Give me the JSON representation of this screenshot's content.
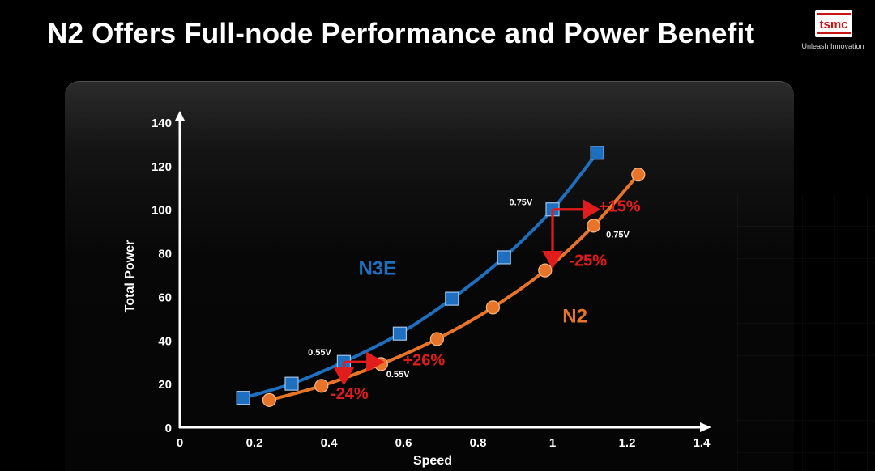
{
  "slide": {
    "title": "N2 Offers Full-node Performance and Power Benefit"
  },
  "logo": {
    "wordmark": "tsmc",
    "tagline": "Unleash Innovation"
  },
  "colors": {
    "n3e": "#1f6fc0",
    "n2": "#e8742a",
    "arrow": "#e01c1c",
    "axis": "#ffffff"
  },
  "chart_data": {
    "type": "line",
    "title": "",
    "xlabel": "Speed",
    "ylabel": "Total Power",
    "xlim": [
      0,
      1.4
    ],
    "ylim": [
      0,
      140
    ],
    "x_ticks": [
      "0",
      "0.2",
      "0.4",
      "0.6",
      "0.8",
      "1",
      "1.2",
      "1.4"
    ],
    "y_ticks": [
      "0",
      "20",
      "40",
      "60",
      "80",
      "100",
      "120",
      "140"
    ],
    "grid": false,
    "legend": "none",
    "series": [
      {
        "name": "N3E",
        "marker": "square",
        "points": [
          {
            "x": 0.17,
            "y": 13.5
          },
          {
            "x": 0.3,
            "y": 20
          },
          {
            "x": 0.44,
            "y": 30
          },
          {
            "x": 0.59,
            "y": 43
          },
          {
            "x": 0.73,
            "y": 59
          },
          {
            "x": 0.87,
            "y": 78
          },
          {
            "x": 1.0,
            "y": 100
          },
          {
            "x": 1.12,
            "y": 126
          }
        ]
      },
      {
        "name": "N2",
        "marker": "circle",
        "points": [
          {
            "x": 0.24,
            "y": 12.5
          },
          {
            "x": 0.38,
            "y": 19
          },
          {
            "x": 0.54,
            "y": 29
          },
          {
            "x": 0.69,
            "y": 40.5
          },
          {
            "x": 0.84,
            "y": 55
          },
          {
            "x": 0.98,
            "y": 72
          },
          {
            "x": 1.11,
            "y": 92.5
          },
          {
            "x": 1.23,
            "y": 116
          }
        ]
      }
    ],
    "series_labels": [
      {
        "text": "N3E",
        "x": 0.53,
        "y": 70,
        "series": "N3E"
      },
      {
        "text": "N2",
        "x": 1.06,
        "y": 48,
        "series": "N2"
      }
    ],
    "voltage_labels": [
      {
        "text": "0.55V",
        "x": 0.375,
        "y": 33
      },
      {
        "text": "0.55V",
        "x": 0.585,
        "y": 23
      },
      {
        "text": "0.75V",
        "x": 0.915,
        "y": 102
      },
      {
        "text": "0.75V",
        "x": 1.175,
        "y": 87
      }
    ],
    "arrows": [
      {
        "from": [
          0.44,
          30
        ],
        "to": [
          0.535,
          30
        ]
      },
      {
        "from": [
          0.44,
          30
        ],
        "to": [
          0.44,
          21.5
        ]
      },
      {
        "from": [
          1.0,
          100
        ],
        "to": [
          1.115,
          100
        ]
      },
      {
        "from": [
          1.0,
          100
        ],
        "to": [
          1.0,
          75
        ]
      }
    ],
    "annotations": [
      {
        "text": "+26%",
        "x": 0.655,
        "y": 28.5
      },
      {
        "text": "-24%",
        "x": 0.455,
        "y": 13
      },
      {
        "text": "+15%",
        "x": 1.18,
        "y": 99
      },
      {
        "text": "-25%",
        "x": 1.095,
        "y": 74
      }
    ]
  }
}
